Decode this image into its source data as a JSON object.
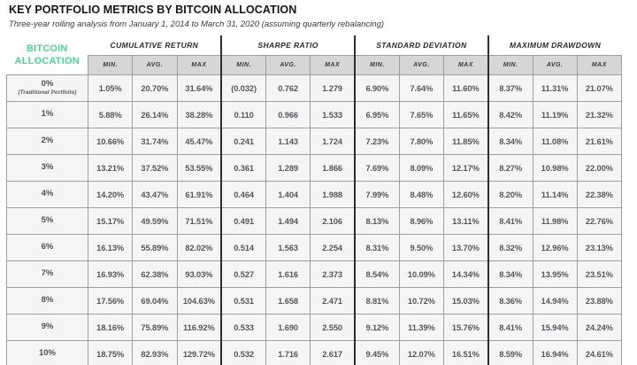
{
  "colors": {
    "accent_green": "#49d694",
    "band_background": "#d6d6d6",
    "cell_background": "#f5f5f5",
    "border_gray": "#9f9f9f",
    "group_separator_dark": "#2e2e2e",
    "title_text": "#151515",
    "value_text": "#56575b"
  },
  "chart_data": {
    "type": "table",
    "title": "KEY PORTFOLIO METRICS BY BITCOIN ALLOCATION",
    "subtitle": "Three-year rolling analysis from January 1, 2014 to March 31, 2020 (assuming quarterly rebalancing)",
    "row_header": [
      "BITCOIN",
      "ALLOCATION"
    ],
    "column_groups": [
      "CUMULATIVE RETURN",
      "SHARPE RATIO",
      "STANDARD DEVIATION",
      "MAXIMUM DRAWDOWN"
    ],
    "sub_columns": [
      "MIN.",
      "AVG.",
      "MAX"
    ],
    "rows": [
      {
        "allocation": "0%",
        "note": "(Traditional Portfolio)",
        "values": [
          "1.05%",
          "20.70%",
          "31.64%",
          "(0.032)",
          "0.762",
          "1.279",
          "6.90%",
          "7.64%",
          "11.60%",
          "8.37%",
          "11.31%",
          "21.07%"
        ]
      },
      {
        "allocation": "1%",
        "values": [
          "5.88%",
          "26.14%",
          "38.28%",
          "0.110",
          "0.966",
          "1.533",
          "6.95%",
          "7.65%",
          "11.65%",
          "8.42%",
          "11.19%",
          "21.32%"
        ]
      },
      {
        "allocation": "2%",
        "values": [
          "10.66%",
          "31.74%",
          "45.47%",
          "0.241",
          "1.143",
          "1.724",
          "7.23%",
          "7.80%",
          "11.85%",
          "8.34%",
          "11.08%",
          "21.61%"
        ]
      },
      {
        "allocation": "3%",
        "values": [
          "13.21%",
          "37.52%",
          "53.55%",
          "0.361",
          "1.289",
          "1.866",
          "7.69%",
          "8.09%",
          "12.17%",
          "8.27%",
          "10.98%",
          "22.00%"
        ]
      },
      {
        "allocation": "4%",
        "values": [
          "14.20%",
          "43.47%",
          "61.91%",
          "0.464",
          "1.404",
          "1.988",
          "7.99%",
          "8.48%",
          "12.60%",
          "8.20%",
          "11.14%",
          "22.38%"
        ]
      },
      {
        "allocation": "5%",
        "values": [
          "15.17%",
          "49.59%",
          "71.51%",
          "0.491",
          "1.494",
          "2.106",
          "8.13%",
          "8.96%",
          "13.11%",
          "8.41%",
          "11.98%",
          "22.76%"
        ]
      },
      {
        "allocation": "6%",
        "values": [
          "16.13%",
          "55.89%",
          "82.02%",
          "0.514",
          "1.563",
          "2.254",
          "8.31%",
          "9.50%",
          "13.70%",
          "8.32%",
          "12.96%",
          "23.13%"
        ]
      },
      {
        "allocation": "7%",
        "values": [
          "16.93%",
          "62.38%",
          "93.03%",
          "0.527",
          "1.616",
          "2.373",
          "8.54%",
          "10.09%",
          "14.34%",
          "8.34%",
          "13.95%",
          "23.51%"
        ]
      },
      {
        "allocation": "8%",
        "values": [
          "17.56%",
          "69.04%",
          "104.63%",
          "0.531",
          "1.658",
          "2.471",
          "8.81%",
          "10.72%",
          "15.03%",
          "8.36%",
          "14.94%",
          "23.88%"
        ]
      },
      {
        "allocation": "9%",
        "values": [
          "18.16%",
          "75.89%",
          "116.92%",
          "0.533",
          "1.690",
          "2.550",
          "9.12%",
          "11.39%",
          "15.76%",
          "8.41%",
          "15.94%",
          "24.24%"
        ]
      },
      {
        "allocation": "10%",
        "values": [
          "18.75%",
          "82.93%",
          "129.72%",
          "0.532",
          "1.716",
          "2.617",
          "9.45%",
          "12.07%",
          "16.51%",
          "8.59%",
          "16.94%",
          "24.61%"
        ]
      }
    ]
  }
}
